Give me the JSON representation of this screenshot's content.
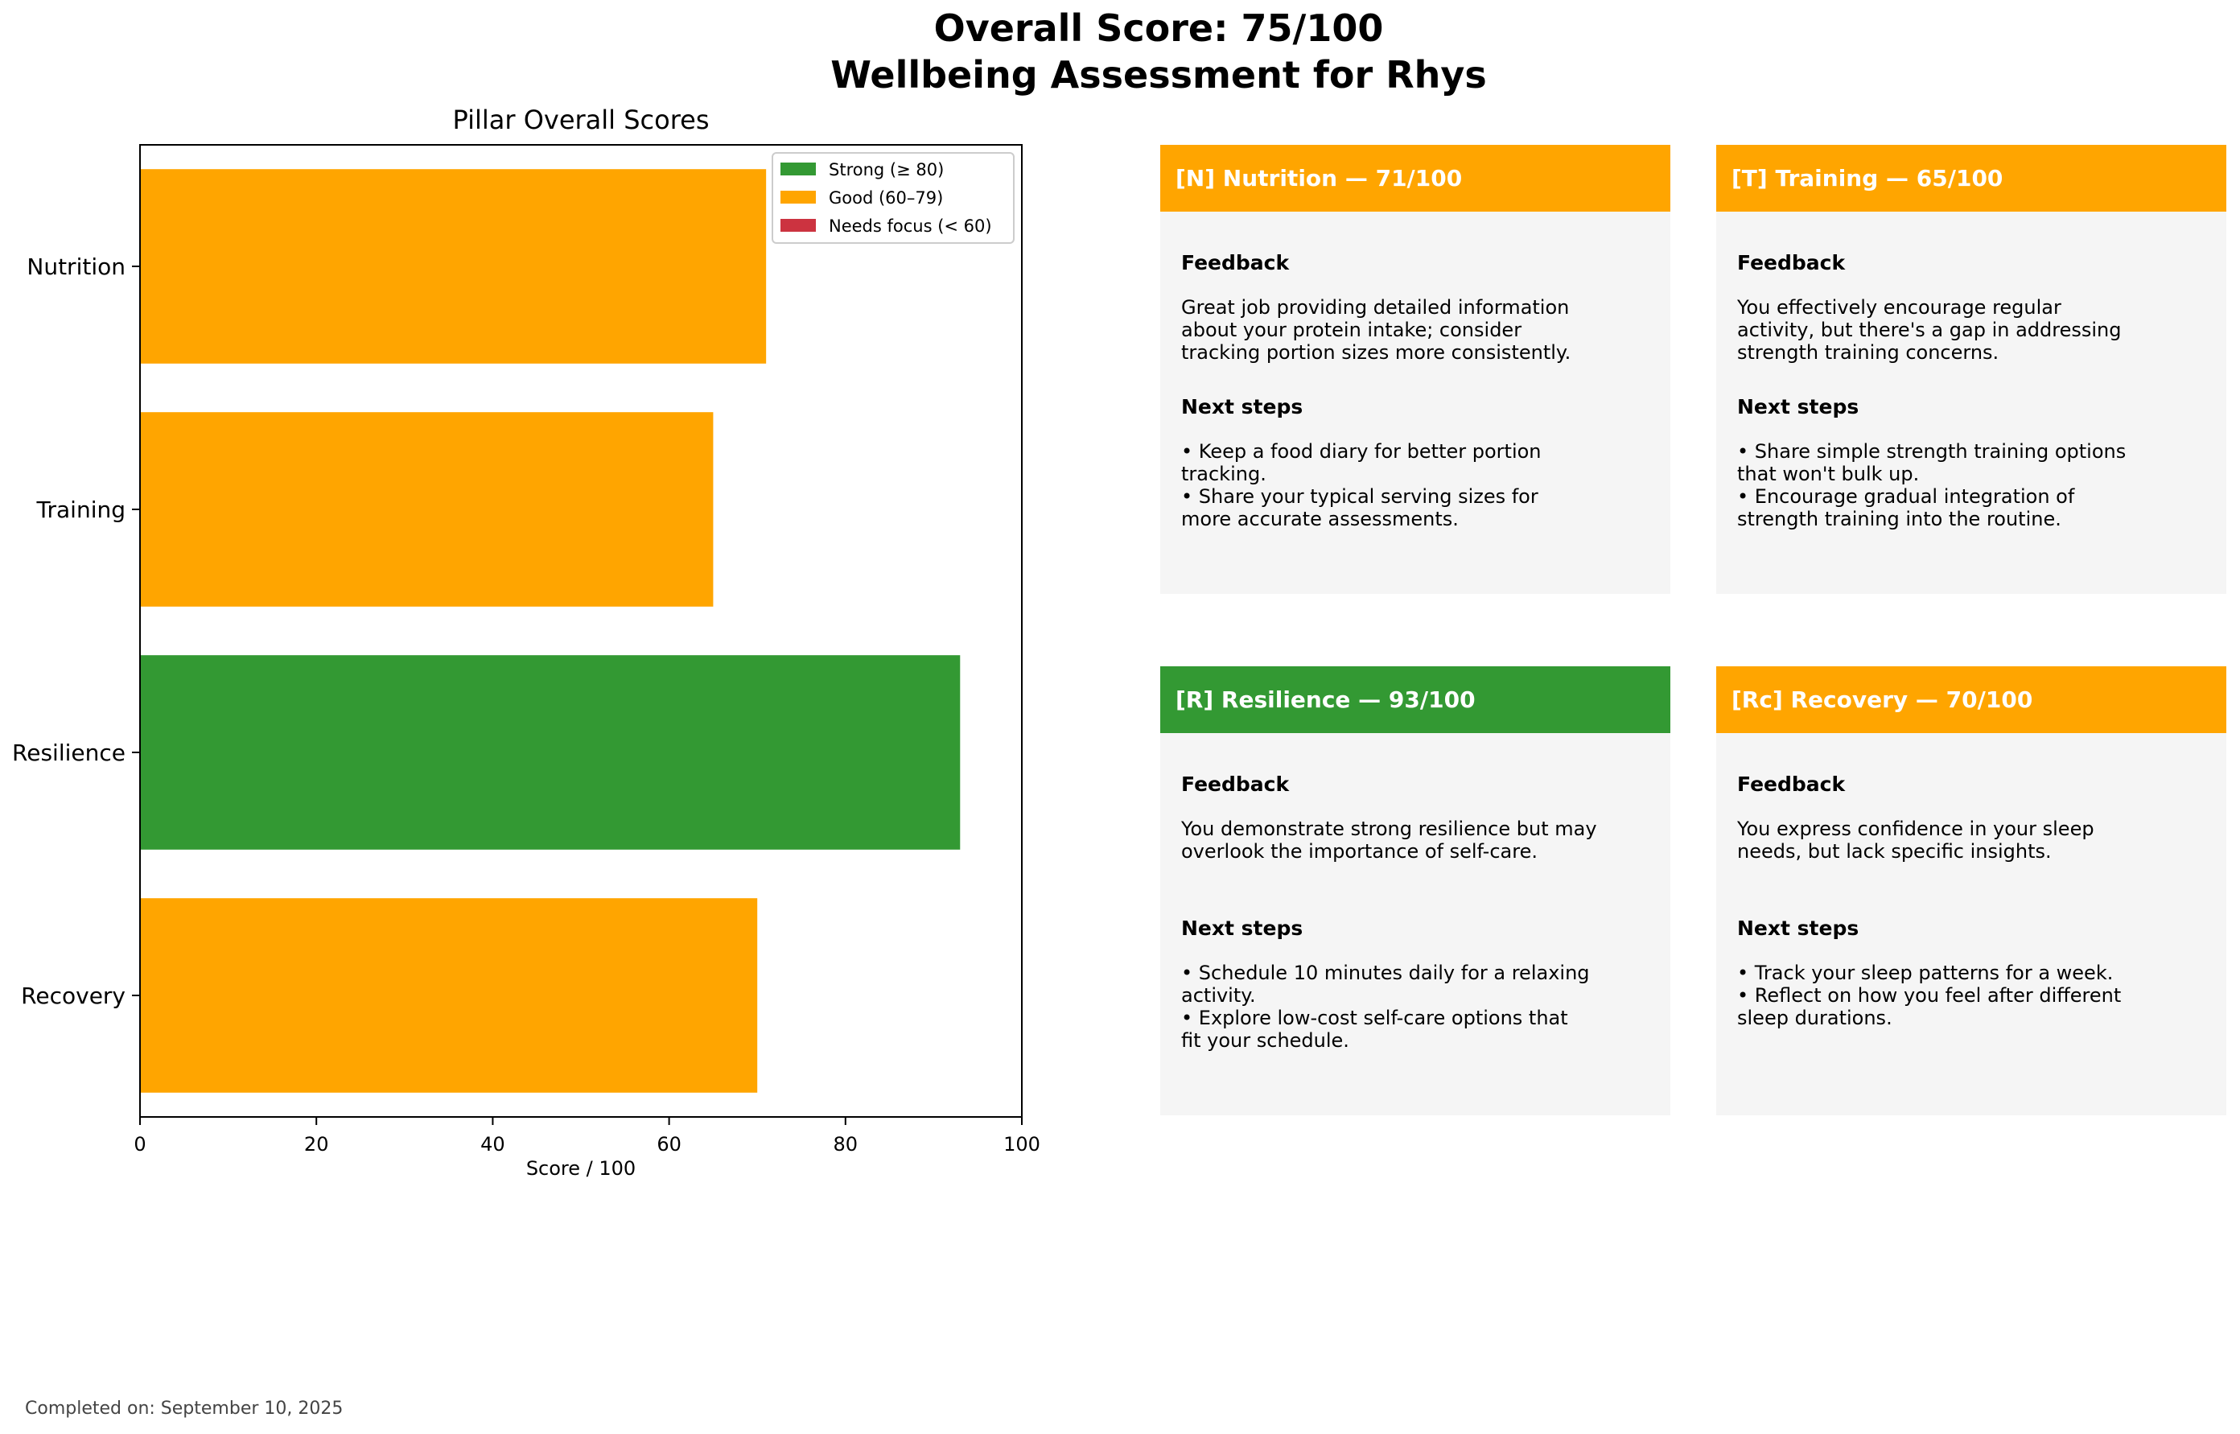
{
  "header": {
    "title_line1": "Overall Score: 75/100",
    "title_line2": "Wellbeing Assessment for Rhys"
  },
  "chart_data": {
    "type": "bar",
    "orientation": "horizontal",
    "title": "Pillar Overall Scores",
    "xlabel": "Score / 100",
    "ylabel": "",
    "xlim": [
      0,
      100
    ],
    "xticks": [
      0,
      20,
      40,
      60,
      80,
      100
    ],
    "categories": [
      "Nutrition",
      "Training",
      "Resilience",
      "Recovery"
    ],
    "values": [
      71,
      65,
      93,
      70
    ],
    "bar_colors": [
      "#ffa500",
      "#ffa500",
      "#339933",
      "#ffa500"
    ],
    "grid": false,
    "legend_position": "top-right",
    "legend": [
      {
        "label": "Strong (≥ 80)",
        "color": "#339933"
      },
      {
        "label": "Good (60–79)",
        "color": "#ffa500"
      },
      {
        "label": "Needs focus (< 60)",
        "color": "#cc3340"
      }
    ]
  },
  "cards": [
    {
      "title": "[N] Nutrition — 71/100",
      "color": "#ffa500",
      "feedback_heading": "Feedback",
      "feedback": "Great job providing detailed information\nabout your protein intake; consider\ntracking portion sizes more consistently.",
      "next_heading": "Next steps",
      "next_steps": "• Keep a food diary for better portion\n  tracking.\n• Share your typical serving sizes for\n  more accurate assessments."
    },
    {
      "title": "[T] Training — 65/100",
      "color": "#ffa500",
      "feedback_heading": "Feedback",
      "feedback": "You effectively encourage regular\nactivity, but there's a gap in addressing\nstrength training concerns.",
      "next_heading": "Next steps",
      "next_steps": "• Share simple strength training options\n  that won't bulk up.\n• Encourage gradual integration of\n  strength training into the routine."
    },
    {
      "title": "[R] Resilience — 93/100",
      "color": "#339933",
      "feedback_heading": "Feedback",
      "feedback": "You demonstrate strong resilience but may\noverlook the importance of self-care.",
      "next_heading": "Next steps",
      "next_steps": "• Schedule 10 minutes daily for a relaxing\n  activity.\n• Explore low-cost self-care options that\n  fit your schedule."
    },
    {
      "title": "[Rc] Recovery — 70/100",
      "color": "#ffa500",
      "feedback_heading": "Feedback",
      "feedback": "You express confidence in your sleep\nneeds, but lack specific insights.",
      "next_heading": "Next steps",
      "next_steps": "• Track your sleep patterns for a week.\n• Reflect on how you feel after different\n  sleep durations."
    }
  ],
  "footer": {
    "completed": "Completed on: September 10, 2025"
  }
}
